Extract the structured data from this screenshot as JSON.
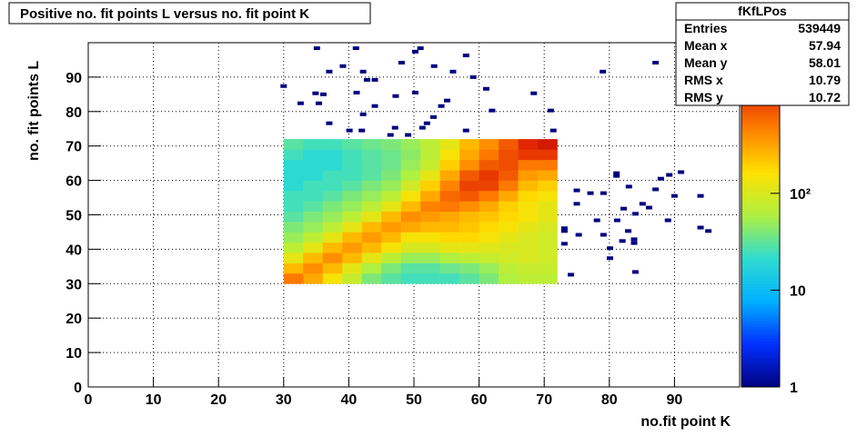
{
  "chart_data": {
    "type": "heatmap",
    "title": "Positive no. fit points L versus no. fit point K",
    "x_label": "no.fit point K",
    "y_label": "no. fit points  L",
    "xlim": [
      0,
      100
    ],
    "ylim": [
      0,
      100
    ],
    "xticks": [
      0,
      10,
      20,
      30,
      40,
      50,
      60,
      70,
      80,
      90
    ],
    "yticks": [
      0,
      10,
      20,
      30,
      40,
      50,
      60,
      70,
      80,
      90
    ],
    "grid": true,
    "log_z": true,
    "zlim": [
      1,
      3600
    ],
    "zticks": [
      1,
      10,
      {
        "value": 100,
        "label": "10²"
      }
    ],
    "colorscale": [
      "#000080",
      "#0030ff",
      "#00b0ff",
      "#30dcd0",
      "#b0f040",
      "#ffe000",
      "#ff8000",
      "#e02000",
      "#800000"
    ],
    "x_edges": [
      30,
      33,
      36,
      39,
      42,
      45,
      48,
      51,
      54,
      57,
      60,
      63,
      66,
      69,
      72
    ],
    "y_edges": [
      30,
      33,
      36,
      39,
      42,
      45,
      48,
      51,
      54,
      57,
      60,
      63,
      66,
      69,
      72
    ],
    "z": [
      [
        500,
        300,
        150,
        80,
        40,
        30,
        25,
        25,
        25,
        30,
        40,
        60,
        70,
        70
      ],
      [
        250,
        400,
        250,
        120,
        60,
        40,
        30,
        30,
        35,
        40,
        50,
        70,
        80,
        80
      ],
      [
        120,
        250,
        400,
        250,
        120,
        70,
        50,
        50,
        60,
        70,
        80,
        90,
        100,
        90
      ],
      [
        70,
        120,
        250,
        350,
        250,
        150,
        100,
        100,
        120,
        120,
        110,
        100,
        100,
        90
      ],
      [
        50,
        70,
        120,
        250,
        350,
        250,
        150,
        150,
        180,
        180,
        150,
        120,
        100,
        90
      ],
      [
        40,
        50,
        70,
        120,
        250,
        350,
        300,
        250,
        250,
        220,
        180,
        150,
        120,
        100
      ],
      [
        30,
        40,
        50,
        70,
        120,
        250,
        400,
        350,
        300,
        250,
        220,
        180,
        150,
        120
      ],
      [
        25,
        30,
        40,
        50,
        70,
        120,
        250,
        450,
        500,
        400,
        300,
        200,
        150,
        120
      ],
      [
        25,
        25,
        30,
        40,
        50,
        70,
        150,
        300,
        600,
        700,
        500,
        300,
        180,
        150
      ],
      [
        20,
        25,
        25,
        30,
        40,
        50,
        90,
        200,
        450,
        900,
        900,
        500,
        250,
        200
      ],
      [
        20,
        20,
        25,
        25,
        30,
        40,
        60,
        120,
        300,
        700,
        1000,
        700,
        350,
        300
      ],
      [
        20,
        20,
        20,
        25,
        30,
        35,
        50,
        80,
        200,
        400,
        700,
        800,
        500,
        500
      ],
      [
        25,
        20,
        20,
        25,
        30,
        35,
        45,
        70,
        150,
        300,
        500,
        800,
        1000,
        1000
      ],
      [
        30,
        25,
        25,
        30,
        35,
        40,
        50,
        70,
        120,
        250,
        400,
        700,
        1200,
        1500
      ]
    ],
    "sparse_z": 1,
    "sparse_cells": [
      [
        35.1,
        98.4
      ],
      [
        41.1,
        98.4
      ],
      [
        51.0,
        98.4
      ],
      [
        50.2,
        97.4
      ],
      [
        58.0,
        96.3
      ],
      [
        48.1,
        94.2
      ],
      [
        39.1,
        93.2
      ],
      [
        37.0,
        91.6
      ],
      [
        42.2,
        91.6
      ],
      [
        53.1,
        93.2
      ],
      [
        56.0,
        91.6
      ],
      [
        59.1,
        90.0
      ],
      [
        42.8,
        89.2
      ],
      [
        44.0,
        89.2
      ],
      [
        30.0,
        87.4
      ],
      [
        61.1,
        86.6
      ],
      [
        79.0,
        91.6
      ],
      [
        87.1,
        94.2
      ],
      [
        34.9,
        85.3
      ],
      [
        36.1,
        85.0
      ],
      [
        41.2,
        85.5
      ],
      [
        47.2,
        84.5
      ],
      [
        50.2,
        85.5
      ],
      [
        55.1,
        83.2
      ],
      [
        68.4,
        85.3
      ],
      [
        32.6,
        82.4
      ],
      [
        35.4,
        82.4
      ],
      [
        44.0,
        81.6
      ],
      [
        54.2,
        81.6
      ],
      [
        62.0,
        80.3
      ],
      [
        71.0,
        80.3
      ],
      [
        42.2,
        79.2
      ],
      [
        53.0,
        78.4
      ],
      [
        37.0,
        76.6
      ],
      [
        52.0,
        76.6
      ],
      [
        40.1,
        74.5
      ],
      [
        42.0,
        74.5
      ],
      [
        47.1,
        75.3
      ],
      [
        51.3,
        75.3
      ],
      [
        46.4,
        73.2
      ],
      [
        49.1,
        73.2
      ],
      [
        58.0,
        74.5
      ],
      [
        71.4,
        74.5
      ],
      [
        81.1,
        62.1
      ],
      [
        81.1,
        61.3
      ],
      [
        89.2,
        61.6
      ],
      [
        91.0,
        62.4
      ],
      [
        87.9,
        60.5
      ],
      [
        83.0,
        58.2
      ],
      [
        75.0,
        57.1
      ],
      [
        77.1,
        56.3
      ],
      [
        79.1,
        56.3
      ],
      [
        87.1,
        57.4
      ],
      [
        90.0,
        55.5
      ],
      [
        94.0,
        55.5
      ],
      [
        85.1,
        53.2
      ],
      [
        75.0,
        53.2
      ],
      [
        82.2,
        51.8
      ],
      [
        86.1,
        52.1
      ],
      [
        84.0,
        50.3
      ],
      [
        78.1,
        48.4
      ],
      [
        81.2,
        48.4
      ],
      [
        89.0,
        48.4
      ],
      [
        73.1,
        46.1
      ],
      [
        73.1,
        45.3
      ],
      [
        75.3,
        44.2
      ],
      [
        79.1,
        44.2
      ],
      [
        82.9,
        45.3
      ],
      [
        94.0,
        46.3
      ],
      [
        95.2,
        45.3
      ],
      [
        83.8,
        42.9
      ],
      [
        83.8,
        41.8
      ],
      [
        73.1,
        41.6
      ],
      [
        82.0,
        42.4
      ],
      [
        80.1,
        40.3
      ],
      [
        80.1,
        37.4
      ],
      [
        84.0,
        33.4
      ],
      [
        74.1,
        32.6
      ]
    ],
    "stats": {
      "name": "fKfLPos",
      "rows": [
        [
          "Entries",
          539449
        ],
        [
          "Mean x",
          57.94
        ],
        [
          "Mean y",
          58.01
        ],
        [
          "RMS x",
          10.79
        ],
        [
          "RMS y",
          10.72
        ]
      ]
    }
  }
}
